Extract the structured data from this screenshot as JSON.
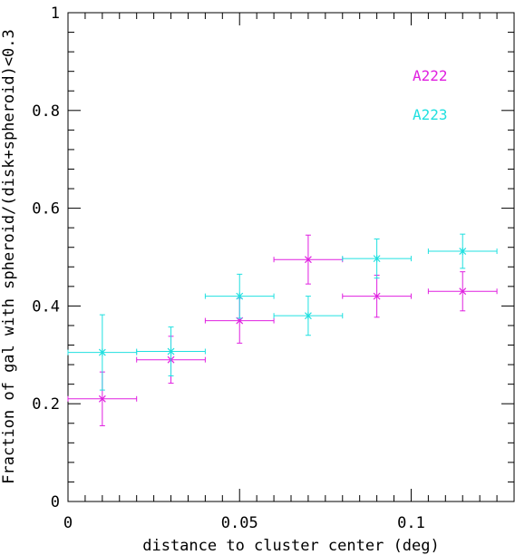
{
  "chart_data": {
    "type": "scatter",
    "title": "",
    "xlabel": "distance to cluster center (deg)",
    "ylabel": "Fraction of gal with spheroid/(disk+spheroid)<0.3",
    "xlim": [
      0,
      0.13
    ],
    "ylim": [
      0,
      1
    ],
    "x_ticks": [
      0,
      0.05,
      0.1
    ],
    "x_tick_labels": [
      "0",
      "0.05",
      "0.1"
    ],
    "y_ticks": [
      0,
      0.2,
      0.4,
      0.6,
      0.8,
      1
    ],
    "y_tick_labels": [
      "0",
      "0.2",
      "0.4",
      "0.6",
      "0.8",
      "1"
    ],
    "grid": false,
    "legend_position": "top-right",
    "series": [
      {
        "name": "A222",
        "color": "#e020e0",
        "points": [
          {
            "x": 0.01,
            "y": 0.21,
            "xerr": 0.01,
            "yerr_low": 0.055,
            "yerr_high": 0.055
          },
          {
            "x": 0.03,
            "y": 0.29,
            "xerr": 0.01,
            "yerr_low": 0.048,
            "yerr_high": 0.048
          },
          {
            "x": 0.05,
            "y": 0.37,
            "xerr": 0.01,
            "yerr_low": 0.046,
            "yerr_high": 0.046
          },
          {
            "x": 0.07,
            "y": 0.495,
            "xerr": 0.01,
            "yerr_low": 0.05,
            "yerr_high": 0.05
          },
          {
            "x": 0.09,
            "y": 0.42,
            "xerr": 0.01,
            "yerr_low": 0.043,
            "yerr_high": 0.043
          },
          {
            "x": 0.115,
            "y": 0.43,
            "xerr": 0.01,
            "yerr_low": 0.04,
            "yerr_high": 0.04
          }
        ]
      },
      {
        "name": "A223",
        "color": "#20e0e0",
        "points": [
          {
            "x": 0.01,
            "y": 0.305,
            "xerr": 0.01,
            "yerr_low": 0.077,
            "yerr_high": 0.077
          },
          {
            "x": 0.03,
            "y": 0.307,
            "xerr": 0.01,
            "yerr_low": 0.05,
            "yerr_high": 0.05
          },
          {
            "x": 0.05,
            "y": 0.42,
            "xerr": 0.01,
            "yerr_low": 0.045,
            "yerr_high": 0.045
          },
          {
            "x": 0.07,
            "y": 0.38,
            "xerr": 0.01,
            "yerr_low": 0.04,
            "yerr_high": 0.04
          },
          {
            "x": 0.09,
            "y": 0.497,
            "xerr": 0.01,
            "yerr_low": 0.04,
            "yerr_high": 0.04
          },
          {
            "x": 0.115,
            "y": 0.512,
            "xerr": 0.01,
            "yerr_low": 0.035,
            "yerr_high": 0.035
          }
        ]
      }
    ]
  }
}
